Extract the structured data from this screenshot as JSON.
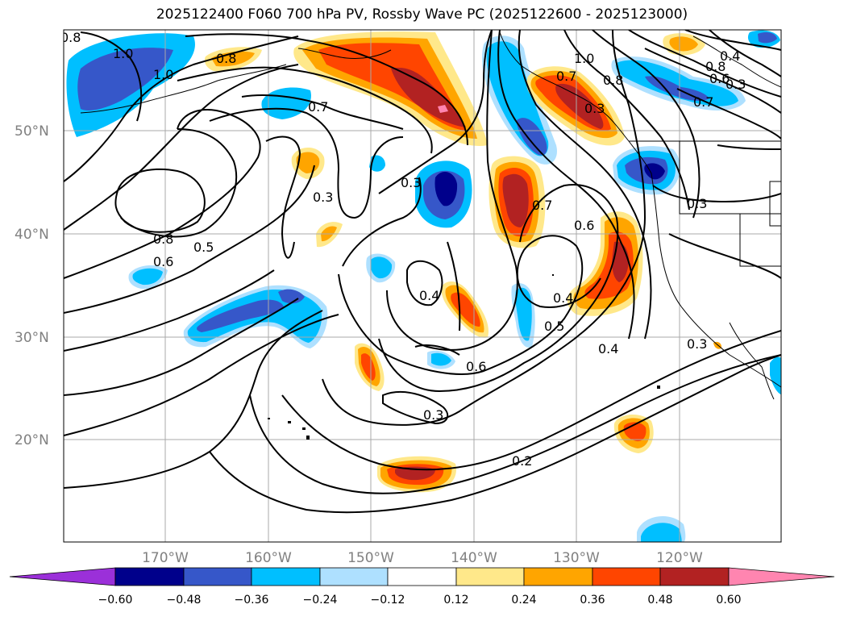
{
  "title": "2025122400 F060 700 hPa PV, Rossby Wave PC (2025122600 - 2025123000)",
  "map": {
    "lat_labels": [
      "50°N",
      "40°N",
      "30°N",
      "20°N"
    ],
    "lon_labels": [
      "170°W",
      "160°W",
      "150°W",
      "140°W",
      "130°W",
      "120°W"
    ],
    "contour_labels": [
      "0.8",
      "1.0",
      "0.8",
      "1.0",
      "0.7",
      "0.3",
      "0.3",
      "0.8",
      "0.5",
      "0.6",
      "0.3",
      "0.4",
      "0.6",
      "0.3",
      "0.2",
      "0.7",
      "0.6",
      "0.4",
      "0.5",
      "0.4",
      "0.3",
      "1.0",
      "0.8",
      "0.7",
      "0.4",
      "0.6",
      "0.7",
      "0.3",
      "0.8",
      "0.3"
    ]
  },
  "colorbar": {
    "ticks": [
      "−0.60",
      "−0.48",
      "−0.36",
      "−0.24",
      "−0.12",
      "0.12",
      "0.24",
      "0.36",
      "0.48",
      "0.60"
    ],
    "colors": [
      "#9b30d9",
      "#00008b",
      "#3657c9",
      "#00bfff",
      "#aee0ff",
      "#ffffff",
      "#ffe88a",
      "#ffa500",
      "#ff4500",
      "#b22222",
      "#ff85b0"
    ]
  }
}
